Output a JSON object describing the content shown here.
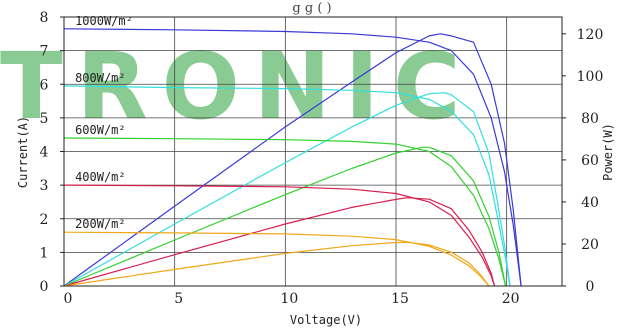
{
  "chart_data": {
    "type": "line",
    "title": "",
    "title_fragment": "g     g   (   )",
    "watermark": "TRONIC",
    "xlabel": "Voltage(V)",
    "ylabel_left": "Current(A)",
    "ylabel_right": "Power(W)",
    "xlim": [
      0,
      22.5
    ],
    "ylim_left": [
      0,
      8
    ],
    "ylim_right": [
      0,
      128
    ],
    "x_ticks": [
      "0",
      "5",
      "10",
      "15",
      "20"
    ],
    "y_left_ticks": [
      "0",
      "1",
      "2",
      "3",
      "4",
      "5",
      "6",
      "7",
      "8"
    ],
    "y_right_ticks": [
      "0",
      "20",
      "40",
      "60",
      "80",
      "100",
      "120"
    ],
    "grid": true,
    "series": [
      {
        "name": "1000W/m²",
        "color": "#3a3ad8",
        "iv": [
          [
            0,
            7.65
          ],
          [
            5,
            7.62
          ],
          [
            10,
            7.57
          ],
          [
            13,
            7.5
          ],
          [
            15,
            7.4
          ],
          [
            16.5,
            7.25
          ],
          [
            17.5,
            7.0
          ],
          [
            18.5,
            6.3
          ],
          [
            19.3,
            5.0
          ],
          [
            19.9,
            3.4
          ],
          [
            20.3,
            1.8
          ],
          [
            20.65,
            0
          ]
        ],
        "pv": [
          [
            0,
            0
          ],
          [
            5,
            38
          ],
          [
            10,
            75.7
          ],
          [
            13,
            97
          ],
          [
            15,
            111
          ],
          [
            16.5,
            119
          ],
          [
            17,
            120
          ],
          [
            17.5,
            119
          ],
          [
            18.5,
            116
          ],
          [
            19.3,
            96
          ],
          [
            19.9,
            68
          ],
          [
            20.3,
            36
          ],
          [
            20.65,
            0
          ]
        ]
      },
      {
        "name": "800W/m²",
        "color": "#33dede",
        "iv": [
          [
            0,
            5.95
          ],
          [
            5,
            5.9
          ],
          [
            10,
            5.87
          ],
          [
            13,
            5.82
          ],
          [
            15,
            5.75
          ],
          [
            16.5,
            5.55
          ],
          [
            17.5,
            5.2
          ],
          [
            18.5,
            4.5
          ],
          [
            19.2,
            3.3
          ],
          [
            19.6,
            2.0
          ],
          [
            19.95,
            0.8
          ],
          [
            20.15,
            0
          ]
        ],
        "pv": [
          [
            0,
            0
          ],
          [
            5,
            29.5
          ],
          [
            10,
            58.7
          ],
          [
            13,
            75.6
          ],
          [
            15,
            86
          ],
          [
            16.5,
            91.5
          ],
          [
            17.2,
            92
          ],
          [
            17.5,
            91
          ],
          [
            18.5,
            83
          ],
          [
            19.2,
            63
          ],
          [
            19.6,
            39
          ],
          [
            19.95,
            16
          ],
          [
            20.15,
            0
          ]
        ]
      },
      {
        "name": "600W/m²",
        "color": "#33d12e",
        "iv": [
          [
            0,
            4.4
          ],
          [
            5,
            4.38
          ],
          [
            10,
            4.35
          ],
          [
            13,
            4.3
          ],
          [
            15,
            4.22
          ],
          [
            16.5,
            4.0
          ],
          [
            17.5,
            3.55
          ],
          [
            18.5,
            2.7
          ],
          [
            19.2,
            1.7
          ],
          [
            19.65,
            0.8
          ],
          [
            19.95,
            0
          ]
        ],
        "pv": [
          [
            0,
            0
          ],
          [
            5,
            21.9
          ],
          [
            10,
            43.5
          ],
          [
            13,
            55.9
          ],
          [
            15,
            63.3
          ],
          [
            16.2,
            66
          ],
          [
            16.5,
            66
          ],
          [
            17.5,
            62
          ],
          [
            18.5,
            50
          ],
          [
            19.2,
            33
          ],
          [
            19.65,
            16
          ],
          [
            19.95,
            0
          ]
        ]
      },
      {
        "name": "400W/m²",
        "color": "#d81e50",
        "iv": [
          [
            0,
            3.0
          ],
          [
            5,
            2.98
          ],
          [
            10,
            2.95
          ],
          [
            13,
            2.88
          ],
          [
            15,
            2.75
          ],
          [
            16.5,
            2.5
          ],
          [
            17.5,
            2.1
          ],
          [
            18.3,
            1.45
          ],
          [
            18.9,
            0.85
          ],
          [
            19.3,
            0.3
          ],
          [
            19.45,
            0
          ]
        ],
        "pv": [
          [
            0,
            0
          ],
          [
            5,
            14.9
          ],
          [
            10,
            29.5
          ],
          [
            13,
            37.4
          ],
          [
            15,
            41.2
          ],
          [
            15.5,
            42
          ],
          [
            16.5,
            41.3
          ],
          [
            17.5,
            36.8
          ],
          [
            18.3,
            26.5
          ],
          [
            18.9,
            16
          ],
          [
            19.3,
            6
          ],
          [
            19.45,
            0
          ]
        ]
      },
      {
        "name": "200W/m²",
        "color": "#f0a818",
        "iv": [
          [
            0,
            1.6
          ],
          [
            5,
            1.58
          ],
          [
            10,
            1.55
          ],
          [
            13,
            1.48
          ],
          [
            15,
            1.38
          ],
          [
            16.5,
            1.18
          ],
          [
            17.5,
            0.92
          ],
          [
            18.3,
            0.6
          ],
          [
            18.8,
            0.3
          ],
          [
            19.2,
            0
          ]
        ],
        "pv": [
          [
            0,
            0
          ],
          [
            5,
            7.9
          ],
          [
            10,
            15.5
          ],
          [
            13,
            19.2
          ],
          [
            15,
            20.7
          ],
          [
            15.5,
            20.8
          ],
          [
            16.5,
            19.5
          ],
          [
            17.5,
            16.1
          ],
          [
            18.3,
            11
          ],
          [
            18.8,
            5.6
          ],
          [
            19.2,
            0
          ]
        ]
      }
    ]
  }
}
